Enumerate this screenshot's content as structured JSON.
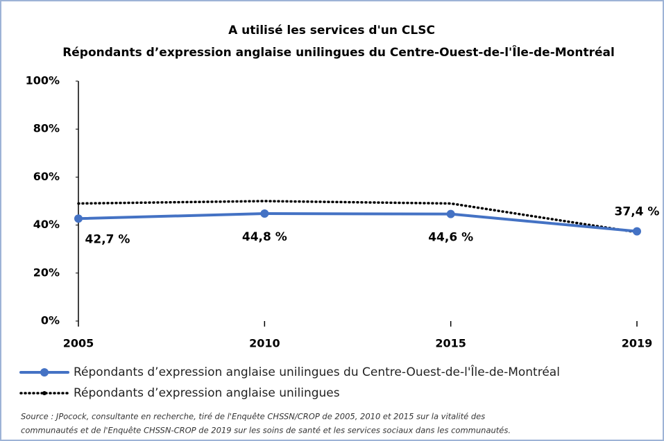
{
  "chart_data": {
    "type": "line",
    "title": "A utilisé les services d'un CLSC",
    "subtitle": "Répondants d’expression anglaise unilingues du Centre-Ouest-de-l'Île-de-Montréal",
    "categories": [
      "2005",
      "2010",
      "2015",
      "2019"
    ],
    "series": [
      {
        "name": "Répondants d’expression anglaise unilingues du Centre-Ouest-de-l'Île-de-Montréal",
        "color": "#4472c4",
        "values": [
          42.7,
          44.8,
          44.6,
          37.4
        ],
        "value_labels": [
          "42,7 %",
          "44,8 %",
          "44,6 %",
          "37,4 %"
        ]
      },
      {
        "name": "Répondants d’expression anglaise unilingues",
        "color": "#000000",
        "values": [
          49,
          50,
          49,
          37
        ]
      }
    ],
    "ylim": [
      0,
      100
    ],
    "yticks": [
      {
        "value": 0,
        "label": "0%"
      },
      {
        "value": 20,
        "label": "20%"
      },
      {
        "value": 40,
        "label": "40%"
      },
      {
        "value": 60,
        "label": "60%"
      },
      {
        "value": 80,
        "label": "80%"
      },
      {
        "value": 100,
        "label": "100%"
      }
    ],
    "source": [
      "Source : JPocock, consultante en recherche, tiré de l'Enquête CHSSN/CROP de 2005, 2010 et 2015 sur la vitalité des",
      "communautés et de l'Enquête CHSSN-CROP de 2019 sur les soins de santé et les services sociaux dans les communautés."
    ]
  }
}
